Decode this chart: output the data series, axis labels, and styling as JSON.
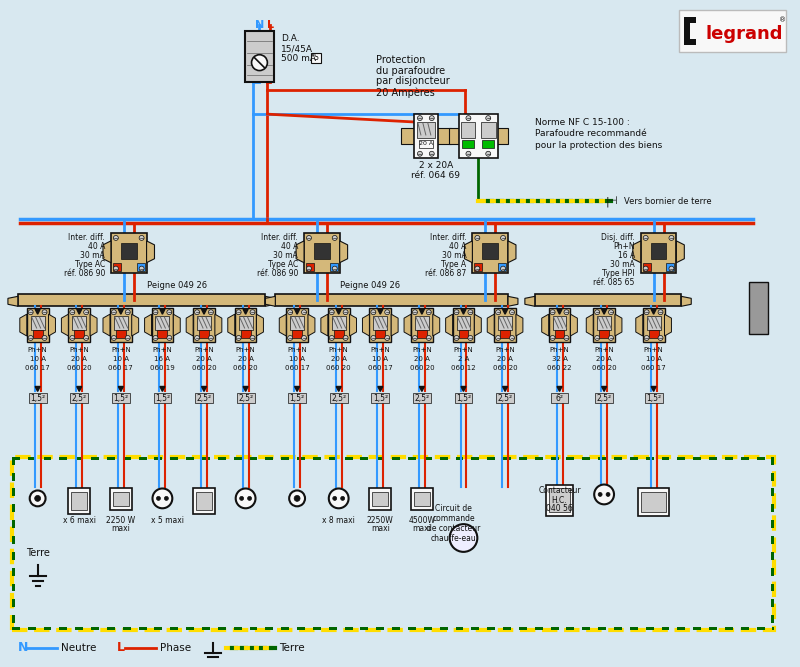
{
  "bg_color": "#d8e8f0",
  "colors": {
    "blue": "#3399ff",
    "red": "#dd2200",
    "green": "#006600",
    "yellow": "#ffdd00",
    "tan": "#d4b87a",
    "tan_dark": "#c4a060",
    "white": "#f8f8f8",
    "black": "#111111",
    "gray": "#aaaaaa",
    "gray_dark": "#666666",
    "gray_light": "#cccccc",
    "legrand_red": "#cc0000"
  },
  "da_labels": [
    "D.A.",
    "15/45A",
    "500 mA",
    "S"
  ],
  "protection_lines": [
    "Protection",
    "du parafoudre",
    "par disjoncteur",
    "20 Ampères"
  ],
  "para_labels": [
    "2 x 20A",
    "réf. 064 69"
  ],
  "norme_lines": [
    "Norme NF C 15-100 :",
    "Parafoudre recommandé",
    "pour la protection des biens"
  ],
  "vers_bornier": "Vers bornier de terre",
  "diff_labels": [
    [
      "Inter. diff.",
      "40 A",
      "30 mA",
      "Type AC",
      "réf. 086 90"
    ],
    [
      "Inter. diff.",
      "40 A",
      "30 mA",
      "Type AC",
      "réf. 086 90"
    ],
    [
      "Inter. diff.",
      "40 A",
      "30 mA",
      "Type A",
      "réf. 086 87"
    ],
    [
      "Disj. diff.",
      "Ph+N",
      "16 A",
      "30 mA",
      "Type HPI",
      "réf. 085 65"
    ]
  ],
  "peigne_labels": [
    "Peigne 049 26",
    "Peigne 049 26"
  ],
  "g1": [
    {
      "lbl": [
        "Ph+N",
        "10 A",
        "060 17"
      ],
      "mm2": "1,5²"
    },
    {
      "lbl": [
        "Ph+N",
        "20 A",
        "060 20"
      ],
      "mm2": "2,5²"
    },
    {
      "lbl": [
        "Ph+N",
        "10 A",
        "060 17"
      ],
      "mm2": "1,5²"
    },
    {
      "lbl": [
        "Ph+N",
        "16 A",
        "060 19"
      ],
      "mm2": "1,5²"
    },
    {
      "lbl": [
        "Ph+N",
        "20 A",
        "060 20"
      ],
      "mm2": "2,5²"
    },
    {
      "lbl": [
        "Ph+N",
        "20 A",
        "060 20"
      ],
      "mm2": "2,5²"
    }
  ],
  "g2": [
    {
      "lbl": [
        "Ph+N",
        "10 A",
        "060 17"
      ],
      "mm2": "1,5²"
    },
    {
      "lbl": [
        "Ph+N",
        "20 A",
        "060 20"
      ],
      "mm2": "2,5²"
    },
    {
      "lbl": [
        "Ph+N",
        "10 A",
        "060 17"
      ],
      "mm2": "1,5²"
    },
    {
      "lbl": [
        "Ph+N",
        "20 A",
        "060 20"
      ],
      "mm2": "2,5²"
    },
    {
      "lbl": [
        "Ph+N",
        "2 A",
        "060 12"
      ],
      "mm2": "1,5²"
    },
    {
      "lbl": [
        "Ph+N",
        "20 A",
        "060 20"
      ],
      "mm2": "2,5²"
    }
  ],
  "g3": [
    {
      "lbl": [
        "Ph+N",
        "32 A",
        "060 22"
      ],
      "mm2": "6²"
    },
    {
      "lbl": [
        "Ph+N",
        "20 A",
        "060 20"
      ],
      "mm2": "2,5²"
    },
    {
      "lbl": [
        "Ph+N",
        "10 A",
        "060 17"
      ],
      "mm2": "1,5²"
    }
  ],
  "legend_items": [
    {
      "sym": "N",
      "sym_color": "#3399ff",
      "line_color": "#3399ff",
      "label": "Neutre"
    },
    {
      "sym": "L",
      "sym_color": "#dd2200",
      "line_color": "#dd2200",
      "label": "Phase"
    },
    {
      "sym": "+",
      "sym_color": "#111111",
      "line_color": "#006600",
      "label": "Terre",
      "dashed": true
    }
  ]
}
